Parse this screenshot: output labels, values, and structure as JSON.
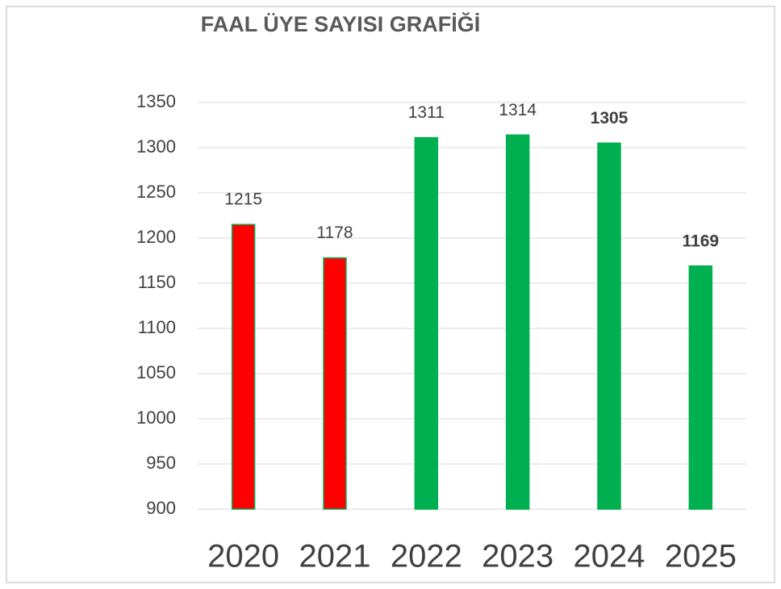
{
  "chart_data": {
    "type": "bar",
    "title": "FAAL ÜYE SAYISI GRAFİĞİ",
    "categories": [
      "2020",
      "2021",
      "2022",
      "2023",
      "2024",
      "2025"
    ],
    "values": [
      1215,
      1178,
      1311,
      1314,
      1305,
      1169
    ],
    "colors": [
      "#ff0000",
      "#ff0000",
      "#00b050",
      "#00b050",
      "#00b050",
      "#00b050"
    ],
    "value_label_bold": [
      false,
      false,
      false,
      false,
      true,
      true
    ],
    "ylim": [
      900,
      1350
    ],
    "yticks": [
      900,
      950,
      1000,
      1050,
      1100,
      1150,
      1200,
      1250,
      1300,
      1350
    ],
    "grid": true
  }
}
